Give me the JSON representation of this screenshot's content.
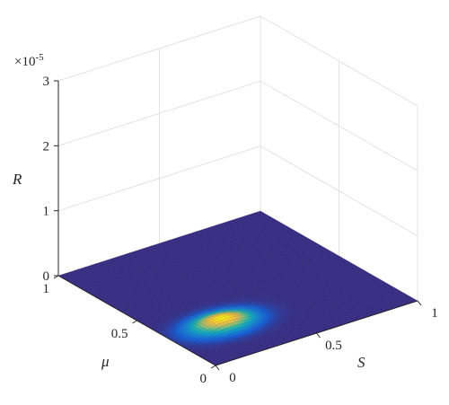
{
  "chart_data": {
    "type": "surface",
    "x_axis": {
      "label": "S",
      "ticks": [
        0,
        0.5,
        1
      ],
      "tick_labels": [
        "0",
        "0.5",
        "1"
      ],
      "range": [
        0,
        1
      ]
    },
    "y_axis": {
      "label": "μ",
      "ticks": [
        0,
        0.5,
        1
      ],
      "tick_labels": [
        "0",
        "0.5",
        "1"
      ],
      "range": [
        0,
        1
      ]
    },
    "z_axis": {
      "label": "R",
      "ticks": [
        0,
        1,
        2,
        3
      ],
      "tick_labels": [
        "0",
        "1",
        "2",
        "3"
      ],
      "range": [
        0,
        3
      ],
      "exponent_label": "×10",
      "exponent_power": "-5",
      "multiplier": 1e-05
    },
    "grid": true,
    "colormap": [
      "#352a87",
      "#0f5cdd",
      "#1481d6",
      "#06a4ca",
      "#2eb7a4",
      "#87bf77",
      "#d1bb59",
      "#fec832",
      "#f9fb0e"
    ],
    "surface": {
      "description_values": "near-zero everywhere except a small bump",
      "peak": {
        "S": 0.25,
        "mu": 0.28,
        "R_scaled": 0.1
      },
      "spread_S": 0.1,
      "spread_mu": 0.06
    }
  }
}
